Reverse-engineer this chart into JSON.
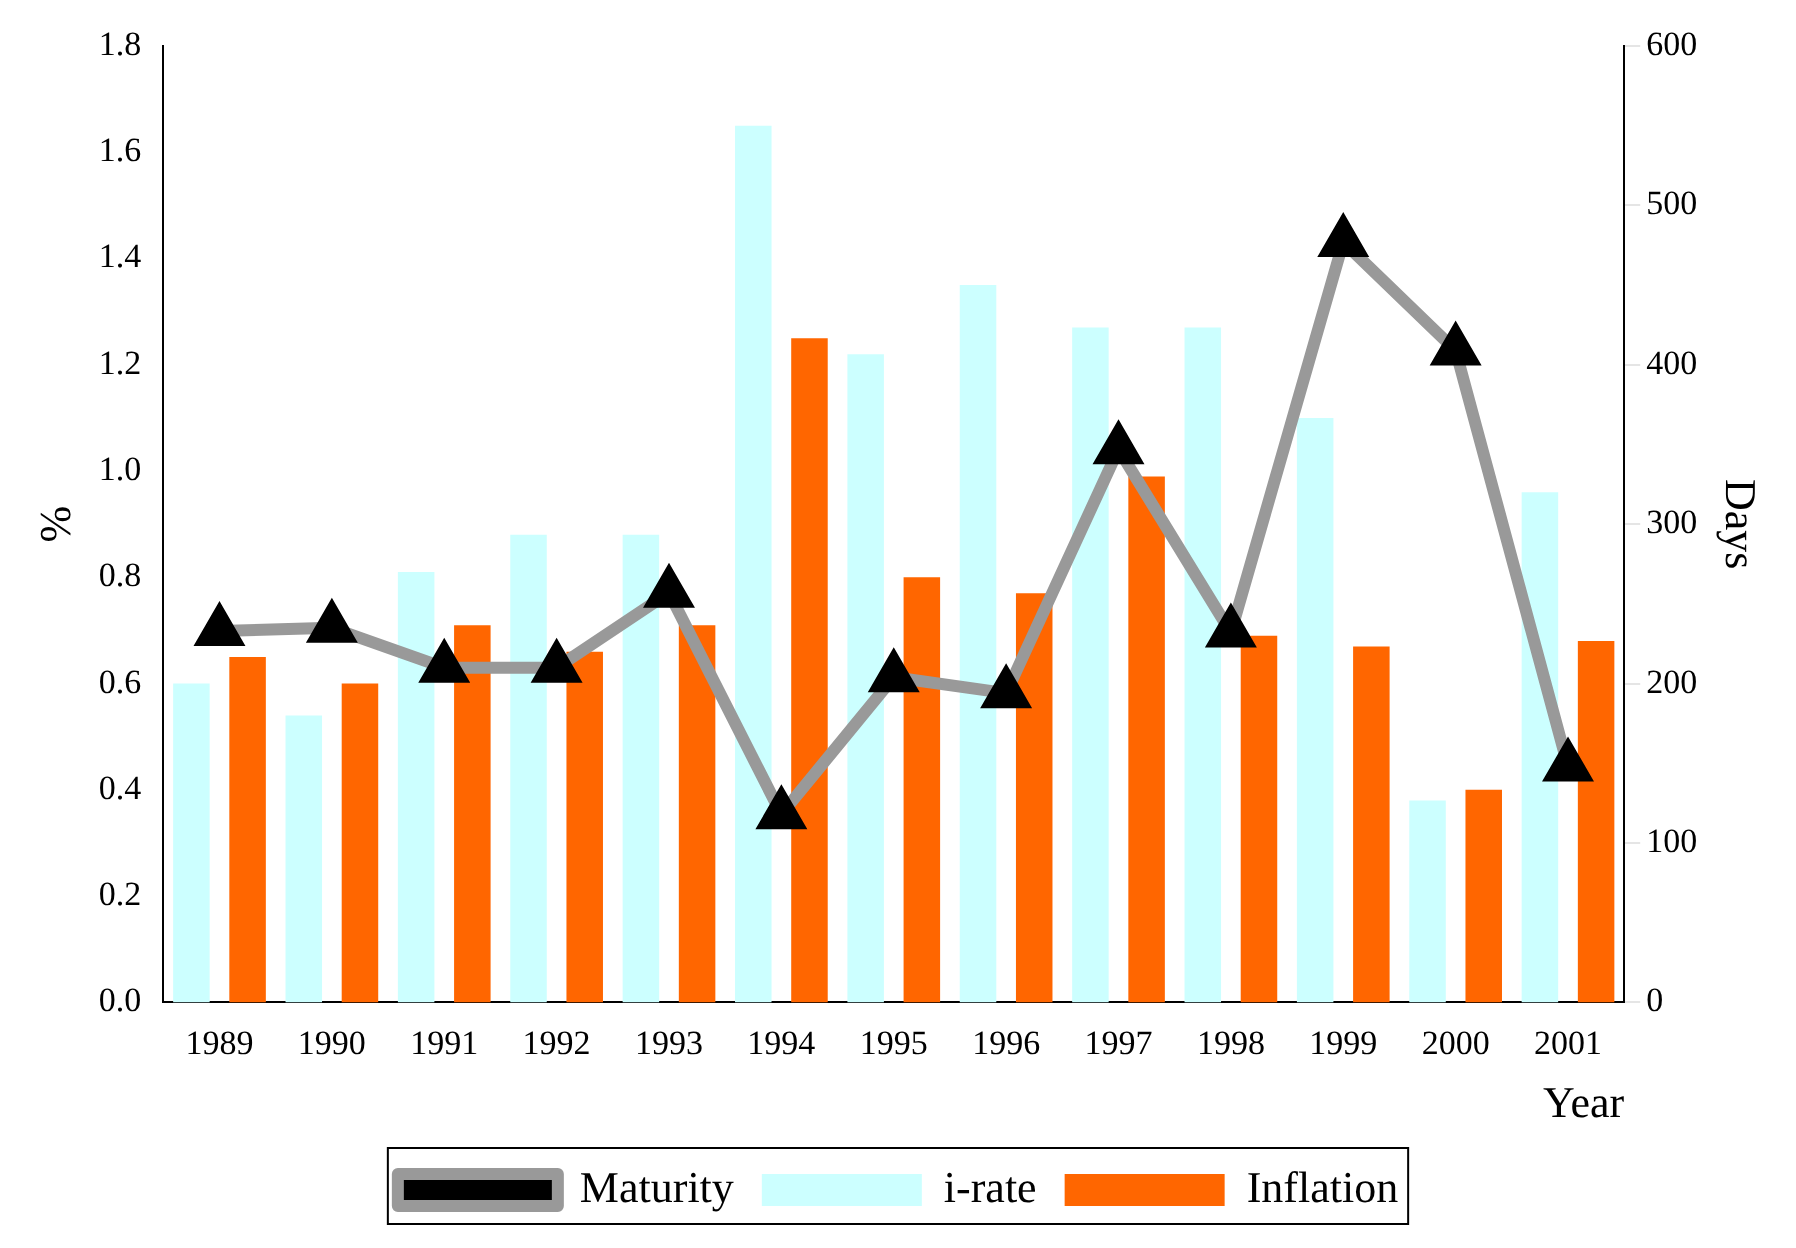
{
  "chart_data": {
    "type": "bar",
    "xlabel": "Year",
    "ylabel": "%",
    "y2label": "Days",
    "categories": [
      "1989",
      "1990",
      "1991",
      "1992",
      "1993",
      "1994",
      "1995",
      "1996",
      "1997",
      "1998",
      "1999",
      "2000",
      "2001"
    ],
    "series": [
      {
        "name": "i-rate",
        "color": "#ccffff",
        "values": [
          0.6,
          0.54,
          0.81,
          0.88,
          0.88,
          1.65,
          1.22,
          1.35,
          1.27,
          1.27,
          1.1,
          0.38,
          0.96
        ]
      },
      {
        "name": "Inflation",
        "color": "#ff6600",
        "values": [
          0.65,
          0.6,
          0.71,
          0.66,
          0.71,
          1.25,
          0.8,
          0.77,
          0.99,
          0.69,
          0.67,
          0.4,
          0.68
        ]
      },
      {
        "name": "Maturity",
        "type": "line",
        "axis": "y2",
        "color": "#999999",
        "marker": "triangle",
        "values": [
          233,
          235,
          210,
          210,
          257,
          118,
          204,
          194,
          347,
          232,
          477,
          409,
          148
        ]
      }
    ],
    "ylim": [
      0,
      1.8
    ],
    "yticks": [
      {
        "value": 0,
        "label": "0.0"
      },
      {
        "value": 0.2,
        "label": "0.2"
      },
      {
        "value": 0.4,
        "label": "0.4"
      },
      {
        "value": 0.6,
        "label": "0.6"
      },
      {
        "value": 0.8,
        "label": "0.8"
      },
      {
        "value": 1,
        "label": "1.0"
      },
      {
        "value": 1.2,
        "label": "1.2"
      },
      {
        "value": 1.4,
        "label": "1.4"
      },
      {
        "value": 1.6,
        "label": "1.6"
      },
      {
        "value": 1.8,
        "label": "1.8"
      }
    ],
    "y2lim": [
      0,
      600
    ],
    "y2ticks": [
      0,
      100,
      200,
      300,
      400,
      500,
      600
    ],
    "grid": false,
    "legend": "bottom"
  }
}
